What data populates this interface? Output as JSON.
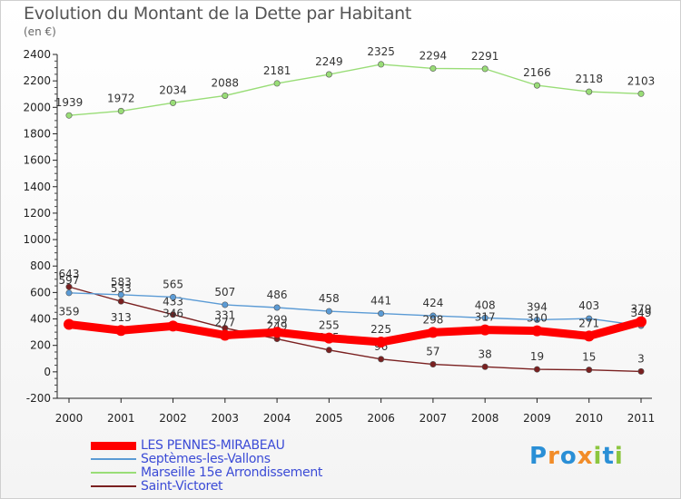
{
  "title": "Evolution du Montant de la Dette par Habitant",
  "unit": "(en €)",
  "logo": {
    "letters": [
      "P",
      "r",
      "o",
      "x",
      "i",
      "t",
      "i"
    ],
    "colors": [
      "#2a8fd6",
      "#f28c28",
      "#2a8fd6",
      "#f28c28",
      "#8cc63f",
      "#2a8fd6",
      "#8cc63f"
    ]
  },
  "chart_data": {
    "type": "line",
    "title": "Evolution du Montant de la Dette par Habitant",
    "ylabel": "(en €)",
    "xlabel": "",
    "categories": [
      "2000",
      "2001",
      "2002",
      "2003",
      "2004",
      "2005",
      "2006",
      "2007",
      "2008",
      "2009",
      "2010",
      "2011"
    ],
    "ylim": [
      -200,
      2400
    ],
    "yticks": [
      -200,
      0,
      200,
      400,
      600,
      800,
      1000,
      1200,
      1400,
      1600,
      1800,
      2000,
      2200,
      2400
    ],
    "grid": false,
    "legend_position": "bottom-left",
    "series": [
      {
        "name": "LES PENNES-MIRABEAU",
        "color": "#ff0000",
        "values": [
          359,
          313,
          346,
          277,
          299,
          255,
          225,
          298,
          317,
          310,
          271,
          379
        ]
      },
      {
        "name": "Septèmes-les-Vallons",
        "color": "#5b9bd5",
        "values": [
          597,
          583,
          565,
          507,
          486,
          458,
          441,
          424,
          408,
          394,
          403,
          349
        ]
      },
      {
        "name": "Marseille 15e  Arrondissement",
        "color": "#99dd77",
        "values": [
          1939,
          1972,
          2034,
          2088,
          2181,
          2249,
          2325,
          2294,
          2291,
          2166,
          2118,
          2103
        ]
      },
      {
        "name": "Saint-Victoret",
        "color": "#7a2020",
        "values": [
          643,
          533,
          433,
          331,
          249,
          165,
          96,
          57,
          38,
          19,
          15,
          3
        ]
      }
    ]
  }
}
